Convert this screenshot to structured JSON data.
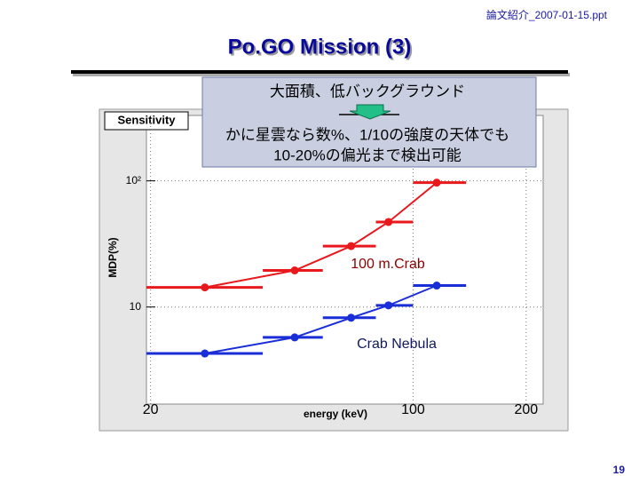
{
  "header": "論文紹介_2007-01-15.ppt",
  "title": "Po.GO Mission (3)",
  "callout": {
    "line1": "大面積、低バックグラウンド",
    "line2": "かに星雲なら数%、1/10の強度の天体でも",
    "line3": "10-20%の偏光まで検出可能"
  },
  "page_number": "19",
  "chart_data": {
    "type": "errorbar",
    "title": "Sensitivity",
    "x_label": "energy (keV)",
    "y_label": "MDP(%)",
    "xscale": "log",
    "yscale": "log",
    "grid": true,
    "xlim": [
      19.5,
      222
    ],
    "ylim": [
      1.7,
      330
    ],
    "xticks": [
      20,
      100,
      200
    ],
    "yticks": [
      10,
      {
        "value": 100,
        "label": "10²"
      }
    ],
    "x": [
      27.9,
      48.4,
      68.4,
      86.0,
      115.6
    ],
    "x_low": [
      19.5,
      39.8,
      57.5,
      79.6,
      100
    ],
    "x_high": [
      39.8,
      57.5,
      79.6,
      100,
      138.4
    ],
    "series": [
      {
        "name": "100 m.Crab",
        "color": "#e8181c",
        "values": [
          14.3,
          19.5,
          30.4,
          47.2,
          96.8
        ]
      },
      {
        "name": "Crab Nebula",
        "color": "#1a2ed8",
        "values": [
          4.28,
          5.74,
          8.22,
          10.3,
          14.8
        ]
      }
    ]
  }
}
